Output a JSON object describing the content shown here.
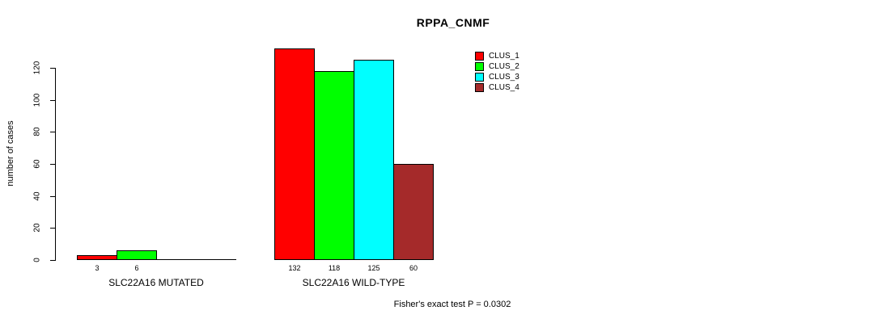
{
  "title": "RPPA_CNMF",
  "footer_note": "Fisher's exact test P = 0.0302",
  "chart_data": {
    "type": "bar",
    "title": "RPPA_CNMF",
    "xlabel": "",
    "ylabel": "number of cases",
    "ylim": [
      0,
      132
    ],
    "yticks": [
      0,
      20,
      40,
      60,
      80,
      100,
      120
    ],
    "grid": false,
    "legend_position": "top-right",
    "groups": [
      "SLC22A16 MUTATED",
      "SLC22A16 WILD-TYPE"
    ],
    "series": [
      {
        "name": "CLUS_1",
        "color": "#ff0000",
        "values": [
          3,
          132
        ]
      },
      {
        "name": "CLUS_2",
        "color": "#00ff00",
        "values": [
          6,
          118
        ]
      },
      {
        "name": "CLUS_3",
        "color": "#00ffff",
        "values": [
          0,
          125
        ]
      },
      {
        "name": "CLUS_4",
        "color": "#a52a2a",
        "values": [
          0,
          60
        ]
      }
    ],
    "bar_value_labels_shown_only_when_positive": true,
    "annotation": "Fisher's exact test P = 0.0302"
  }
}
